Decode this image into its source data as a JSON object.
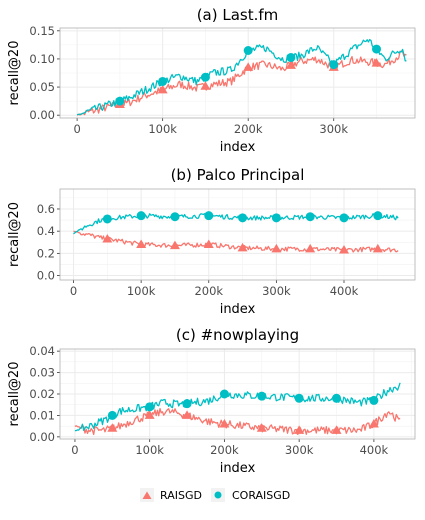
{
  "colors": {
    "raisgd": "#f8766d",
    "coraisgd": "#00bfc4",
    "panel_bg": "#ffffff",
    "grid": "#ebebeb",
    "border": "#b0b0b0"
  },
  "legend": {
    "entries": [
      "RAISGD",
      "CORAISGD"
    ],
    "position": "bottom"
  },
  "chart_data": [
    {
      "type": "line",
      "title": "(a) Last.fm",
      "xlabel": "index",
      "ylabel": "recall@20",
      "xlim": [
        -20000,
        395000
      ],
      "ylim": [
        -0.005,
        0.155
      ],
      "xticks": [
        0,
        100000,
        200000,
        300000
      ],
      "xtick_labels": [
        "0",
        "100k",
        "200k",
        "300k"
      ],
      "yticks": [
        0,
        0.05,
        0.1,
        0.15
      ],
      "ytick_labels": [
        "0.00",
        "0.05",
        "0.10",
        "0.15"
      ],
      "series": [
        {
          "name": "RAISGD",
          "x": [
            0,
            20000,
            40000,
            60000,
            80000,
            100000,
            120000,
            140000,
            160000,
            180000,
            200000,
            220000,
            240000,
            260000,
            280000,
            300000,
            320000,
            340000,
            360000,
            380000,
            385000
          ],
          "y": [
            0.0,
            0.008,
            0.016,
            0.022,
            0.035,
            0.045,
            0.055,
            0.048,
            0.055,
            0.06,
            0.085,
            0.09,
            0.082,
            0.095,
            0.1,
            0.085,
            0.098,
            0.095,
            0.09,
            0.11,
            0.1
          ],
          "marker_x": [
            50000,
            100000,
            150000,
            200000,
            250000,
            300000,
            350000
          ]
        },
        {
          "name": "CORAISGD",
          "x": [
            0,
            20000,
            40000,
            60000,
            80000,
            100000,
            120000,
            140000,
            160000,
            180000,
            200000,
            220000,
            240000,
            260000,
            280000,
            300000,
            320000,
            340000,
            360000,
            380000,
            385000
          ],
          "y": [
            0.0,
            0.01,
            0.02,
            0.03,
            0.045,
            0.06,
            0.07,
            0.06,
            0.075,
            0.08,
            0.115,
            0.12,
            0.1,
            0.105,
            0.12,
            0.09,
            0.115,
            0.135,
            0.1,
            0.12,
            0.095
          ],
          "marker_x": [
            50000,
            100000,
            150000,
            200000,
            250000,
            300000,
            350000
          ]
        }
      ]
    },
    {
      "type": "line",
      "title": "(b) Palco Principal",
      "xlabel": "index",
      "ylabel": "recall@20",
      "xlim": [
        -20000,
        505000
      ],
      "ylim": [
        -0.04,
        0.78
      ],
      "xticks": [
        0,
        100000,
        200000,
        300000,
        400000
      ],
      "xtick_labels": [
        "0",
        "100k",
        "200k",
        "300k",
        "400k"
      ],
      "yticks": [
        0,
        0.2,
        0.4,
        0.6
      ],
      "ytick_labels": [
        "0.0",
        "0.2",
        "0.4",
        "0.6"
      ],
      "series": [
        {
          "name": "RAISGD",
          "x": [
            0,
            20000,
            40000,
            60000,
            80000,
            100000,
            150000,
            200000,
            250000,
            300000,
            350000,
            400000,
            450000,
            480000
          ],
          "y": [
            0.4,
            0.37,
            0.34,
            0.32,
            0.3,
            0.28,
            0.27,
            0.28,
            0.25,
            0.24,
            0.24,
            0.23,
            0.24,
            0.23
          ],
          "marker_x": [
            50000,
            100000,
            150000,
            200000,
            250000,
            300000,
            350000,
            400000,
            450000
          ]
        },
        {
          "name": "CORAISGD",
          "x": [
            0,
            20000,
            40000,
            60000,
            80000,
            100000,
            150000,
            200000,
            250000,
            300000,
            350000,
            400000,
            450000,
            480000
          ],
          "y": [
            0.38,
            0.45,
            0.5,
            0.52,
            0.53,
            0.54,
            0.53,
            0.54,
            0.52,
            0.52,
            0.53,
            0.52,
            0.54,
            0.52
          ],
          "marker_x": [
            50000,
            100000,
            150000,
            200000,
            250000,
            300000,
            350000,
            400000,
            450000
          ]
        }
      ]
    },
    {
      "type": "line",
      "title": "(c) #nowplaying",
      "xlabel": "index",
      "ylabel": "recall@20",
      "xlim": [
        -20000,
        455000
      ],
      "ylim": [
        -0.001,
        0.041
      ],
      "xticks": [
        0,
        100000,
        200000,
        300000,
        400000
      ],
      "xtick_labels": [
        "0",
        "100k",
        "200k",
        "300k",
        "400k"
      ],
      "yticks": [
        0,
        0.01,
        0.02,
        0.03,
        0.04
      ],
      "ytick_labels": [
        "0.00",
        "0.01",
        "0.02",
        "0.03",
        "0.04"
      ],
      "series": [
        {
          "name": "RAISGD",
          "x": [
            0,
            20000,
            40000,
            60000,
            80000,
            100000,
            120000,
            140000,
            160000,
            180000,
            200000,
            250000,
            300000,
            350000,
            380000,
            400000,
            420000,
            435000
          ],
          "y": [
            0.005,
            0.003,
            0.003,
            0.005,
            0.008,
            0.01,
            0.012,
            0.011,
            0.009,
            0.007,
            0.006,
            0.004,
            0.003,
            0.003,
            0.003,
            0.006,
            0.012,
            0.007
          ],
          "marker_x": [
            50000,
            100000,
            150000,
            200000,
            250000,
            300000,
            350000,
            400000
          ]
        },
        {
          "name": "CORAISGD",
          "x": [
            0,
            20000,
            40000,
            60000,
            80000,
            100000,
            120000,
            140000,
            160000,
            180000,
            200000,
            250000,
            300000,
            350000,
            380000,
            400000,
            420000,
            435000
          ],
          "y": [
            0.003,
            0.005,
            0.008,
            0.012,
            0.013,
            0.014,
            0.016,
            0.015,
            0.016,
            0.017,
            0.02,
            0.019,
            0.018,
            0.018,
            0.016,
            0.017,
            0.022,
            0.024
          ],
          "marker_x": [
            50000,
            100000,
            150000,
            200000,
            250000,
            300000,
            350000,
            400000
          ]
        }
      ]
    }
  ]
}
